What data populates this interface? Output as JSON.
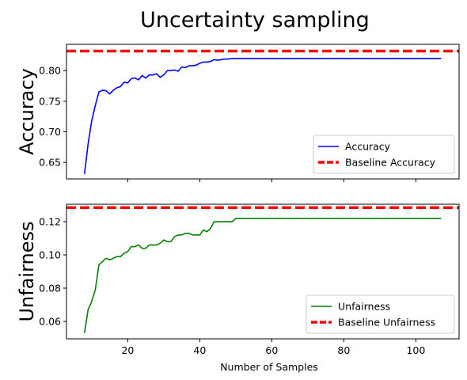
{
  "figure": {
    "title": "Uncertainty sampling"
  },
  "chart_data": [
    {
      "type": "line",
      "title": "",
      "xlabel": "",
      "ylabel": "Accuracy",
      "xlim": [
        3,
        112
      ],
      "ylim": [
        0.623,
        0.843
      ],
      "yticks": [
        0.65,
        0.7,
        0.75,
        0.8
      ],
      "ytick_labels": [
        "0.65",
        "0.70",
        "0.75",
        "0.80"
      ],
      "xticks": [
        20,
        40,
        60,
        80,
        100
      ],
      "xtick_labels": [
        "",
        "",
        "",
        "",
        ""
      ],
      "grid": false,
      "legend_position": "bottom-right",
      "series": [
        {
          "name": "Accuracy",
          "color": "#0000ff",
          "style": "solid",
          "x": [
            8,
            9,
            10,
            11,
            12,
            13,
            14,
            15,
            16,
            17,
            18,
            19,
            20,
            21,
            22,
            23,
            24,
            25,
            26,
            27,
            28,
            29,
            30,
            31,
            32,
            33,
            34,
            35,
            36,
            37,
            38,
            39,
            40,
            41,
            42,
            43,
            44,
            45,
            46,
            47,
            48,
            49,
            50,
            51,
            52,
            53,
            54,
            55,
            56,
            57,
            58,
            59,
            60,
            61,
            62,
            63,
            64,
            65,
            66,
            67,
            68,
            69,
            70,
            71,
            72,
            73,
            74,
            75,
            76,
            77,
            78,
            79,
            80,
            81,
            82,
            83,
            84,
            85,
            86,
            87,
            88,
            89,
            90,
            91,
            92,
            93,
            94,
            95,
            96,
            97,
            98,
            99,
            100,
            101,
            102,
            103,
            104,
            105,
            106,
            107
          ],
          "y": [
            0.631,
            0.68,
            0.718,
            0.743,
            0.765,
            0.768,
            0.767,
            0.762,
            0.768,
            0.772,
            0.774,
            0.781,
            0.78,
            0.787,
            0.788,
            0.785,
            0.792,
            0.788,
            0.793,
            0.793,
            0.795,
            0.789,
            0.793,
            0.8,
            0.8,
            0.801,
            0.799,
            0.806,
            0.805,
            0.808,
            0.808,
            0.809,
            0.812,
            0.814,
            0.814,
            0.815,
            0.818,
            0.817,
            0.818,
            0.819,
            0.819,
            0.82,
            0.82,
            0.82,
            0.82,
            0.82,
            0.82,
            0.82,
            0.82,
            0.82,
            0.82,
            0.82,
            0.82,
            0.82,
            0.82,
            0.82,
            0.82,
            0.82,
            0.82,
            0.82,
            0.82,
            0.82,
            0.82,
            0.82,
            0.82,
            0.82,
            0.82,
            0.82,
            0.82,
            0.82,
            0.82,
            0.82,
            0.82,
            0.82,
            0.82,
            0.82,
            0.82,
            0.82,
            0.82,
            0.82,
            0.82,
            0.82,
            0.82,
            0.82,
            0.82,
            0.82,
            0.82,
            0.82,
            0.82,
            0.82,
            0.82,
            0.82,
            0.82,
            0.82,
            0.82,
            0.82,
            0.82,
            0.82,
            0.82,
            0.82
          ]
        },
        {
          "name": "Baseline Accuracy",
          "color": "#ff0000",
          "style": "dashed",
          "hline": 0.832
        }
      ]
    },
    {
      "type": "line",
      "title": "",
      "xlabel": "Number of Samples",
      "ylabel": "Unfairness",
      "xlim": [
        3,
        112
      ],
      "ylim": [
        0.0495,
        0.1305
      ],
      "yticks": [
        0.06,
        0.08,
        0.1,
        0.12
      ],
      "ytick_labels": [
        "0.06",
        "0.08",
        "0.10",
        "0.12"
      ],
      "xticks": [
        20,
        40,
        60,
        80,
        100
      ],
      "xtick_labels": [
        "20",
        "40",
        "60",
        "80",
        "100"
      ],
      "grid": false,
      "legend_position": "bottom-right",
      "series": [
        {
          "name": "Unfairness",
          "color": "#008000",
          "style": "solid",
          "x": [
            8,
            9,
            10,
            11,
            12,
            13,
            14,
            15,
            16,
            17,
            18,
            19,
            20,
            21,
            22,
            23,
            24,
            25,
            26,
            27,
            28,
            29,
            30,
            31,
            32,
            33,
            34,
            35,
            36,
            37,
            38,
            39,
            40,
            41,
            42,
            43,
            44,
            45,
            46,
            47,
            48,
            49,
            50,
            51,
            52,
            53,
            54,
            55,
            56,
            57,
            58,
            59,
            60,
            61,
            62,
            63,
            64,
            65,
            66,
            67,
            68,
            69,
            70,
            71,
            72,
            73,
            74,
            75,
            76,
            77,
            78,
            79,
            80,
            81,
            82,
            83,
            84,
            85,
            86,
            87,
            88,
            89,
            90,
            91,
            92,
            93,
            94,
            95,
            96,
            97,
            98,
            99,
            100,
            101,
            102,
            103,
            104,
            105,
            106,
            107
          ],
          "y": [
            0.053,
            0.067,
            0.072,
            0.079,
            0.094,
            0.096,
            0.098,
            0.097,
            0.098,
            0.099,
            0.099,
            0.101,
            0.102,
            0.105,
            0.105,
            0.106,
            0.104,
            0.104,
            0.106,
            0.106,
            0.106,
            0.107,
            0.109,
            0.108,
            0.108,
            0.111,
            0.112,
            0.112,
            0.113,
            0.113,
            0.112,
            0.112,
            0.112,
            0.115,
            0.114,
            0.116,
            0.12,
            0.12,
            0.12,
            0.12,
            0.12,
            0.12,
            0.122,
            0.122,
            0.122,
            0.122,
            0.122,
            0.122,
            0.122,
            0.122,
            0.122,
            0.122,
            0.122,
            0.122,
            0.122,
            0.122,
            0.122,
            0.122,
            0.122,
            0.122,
            0.122,
            0.122,
            0.122,
            0.122,
            0.122,
            0.122,
            0.122,
            0.122,
            0.122,
            0.122,
            0.122,
            0.122,
            0.122,
            0.122,
            0.122,
            0.122,
            0.122,
            0.122,
            0.122,
            0.122,
            0.122,
            0.122,
            0.122,
            0.122,
            0.122,
            0.122,
            0.122,
            0.122,
            0.122,
            0.122,
            0.122,
            0.122,
            0.122,
            0.122,
            0.122,
            0.122,
            0.122,
            0.122,
            0.122,
            0.122
          ]
        },
        {
          "name": "Baseline Unfairness",
          "color": "#ff0000",
          "style": "dashed",
          "hline": 0.1285
        }
      ]
    }
  ]
}
